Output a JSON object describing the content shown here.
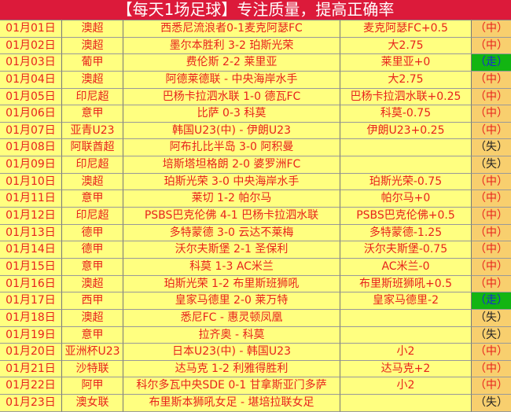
{
  "title": "【每天1场足球】专注质量，提高正确率",
  "colors": {
    "header_bg": "#dc1a3a",
    "row_bg": "#ffff80",
    "result_bg": "#f8cf6e",
    "push_bg": "#12b512",
    "text": "#e8221c"
  },
  "rows": [
    {
      "date": "01月01日",
      "league": "澳超",
      "match": "西悉尼流浪者0-1麦克阿瑟FC",
      "tip": "麦克阿瑟FC+0.5",
      "result": "（中）",
      "type": "win"
    },
    {
      "date": "01月02日",
      "league": "澳超",
      "match": "墨尔本胜利 3-2 珀斯光荣",
      "tip": "大2.75",
      "result": "（中）",
      "type": "win"
    },
    {
      "date": "01月03日",
      "league": "葡甲",
      "match": "费伦斯 2-2 莱里亚",
      "tip": "莱里亚+0",
      "result": "（走）",
      "type": "push"
    },
    {
      "date": "01月04日",
      "league": "澳超",
      "match": "阿德莱德联 - 中央海岸水手",
      "tip": "大2.75",
      "result": "（中）",
      "type": "win"
    },
    {
      "date": "01月05日",
      "league": "印尼超",
      "match": "巴杨卡拉泗水联 1-0 德瓦FC",
      "tip": "巴杨卡拉泗水联+0.25",
      "result": "（中）",
      "type": "win"
    },
    {
      "date": "01月06日",
      "league": "意甲",
      "match": "比萨 0-3 科莫",
      "tip": "科莫-0.75",
      "result": "（中）",
      "type": "win"
    },
    {
      "date": "01月07日",
      "league": "亚青U23",
      "match": "韩国U23(中) - 伊朗U23",
      "tip": "伊朗U23+0.25",
      "result": "（中）",
      "type": "win"
    },
    {
      "date": "01月08日",
      "league": "阿联酋超",
      "match": "阿布扎比半岛 3-0 阿积曼",
      "tip": "",
      "result": "（失）",
      "type": "lose"
    },
    {
      "date": "01月09日",
      "league": "印尼超",
      "match": "培斯塔坦格朗 2-0 婆罗洲FC",
      "tip": "",
      "result": "（失）",
      "type": "lose"
    },
    {
      "date": "01月10日",
      "league": "澳超",
      "match": "珀斯光荣 3-0 中央海岸水手",
      "tip": "珀斯光荣-0.75",
      "result": "（中）",
      "type": "win"
    },
    {
      "date": "01月11日",
      "league": "意甲",
      "match": "莱切 1-2 帕尔马",
      "tip": "帕尔马+0",
      "result": "（中）",
      "type": "win"
    },
    {
      "date": "01月12日",
      "league": "印尼超",
      "match": "PSBS巴克伦佛 4-1 巴杨卡拉泗水联",
      "tip": "PSBS巴克伦佛+0.5",
      "result": "（中）",
      "type": "win"
    },
    {
      "date": "01月13日",
      "league": "德甲",
      "match": "多特蒙德 3-0 云达不莱梅",
      "tip": "多特蒙德-1.25",
      "result": "（中）",
      "type": "win"
    },
    {
      "date": "01月14日",
      "league": "德甲",
      "match": "沃尔夫斯堡 2-1 圣保利",
      "tip": "沃尔夫斯堡-0.75",
      "result": "（中）",
      "type": "win"
    },
    {
      "date": "01月15日",
      "league": "意甲",
      "match": "科莫 1-3 AC米兰",
      "tip": "AC米兰-0",
      "result": "（中）",
      "type": "win"
    },
    {
      "date": "01月16日",
      "league": "澳超",
      "match": "珀斯光荣 1-2 布里斯班狮吼",
      "tip": "布里斯班狮吼+0.5",
      "result": "（中）",
      "type": "win"
    },
    {
      "date": "01月17日",
      "league": "西甲",
      "match": "皇家马德里 2-0 莱万特",
      "tip": "皇家马德里-2",
      "result": "（走）",
      "type": "push"
    },
    {
      "date": "01月18日",
      "league": "澳超",
      "match": "悉尼FC - 惠灵顿凤凰",
      "tip": "",
      "result": "（失）",
      "type": "lose"
    },
    {
      "date": "01月19日",
      "league": "意甲",
      "match": "拉齐奥 - 科莫",
      "tip": "",
      "result": "（失）",
      "type": "lose"
    },
    {
      "date": "01月20日",
      "league": "亚洲杯U23",
      "match": "日本U23(中) - 韩国U23",
      "tip": "小2",
      "result": "（中）",
      "type": "win"
    },
    {
      "date": "01月21日",
      "league": "沙特联",
      "match": "达马克 1-2 利雅得胜利",
      "tip": "达马克+2",
      "result": "（中）",
      "type": "win"
    },
    {
      "date": "01月22日",
      "league": "阿甲",
      "match": "科尔多瓦中央SDE 0-1 甘拿斯亚门多萨",
      "tip": "小2",
      "result": "（中）",
      "type": "win"
    },
    {
      "date": "01月23日",
      "league": "澳女联",
      "match": "布里斯本狮吼女足 - 堪培拉联女足",
      "tip": "",
      "result": "（失）",
      "type": "lose"
    }
  ]
}
